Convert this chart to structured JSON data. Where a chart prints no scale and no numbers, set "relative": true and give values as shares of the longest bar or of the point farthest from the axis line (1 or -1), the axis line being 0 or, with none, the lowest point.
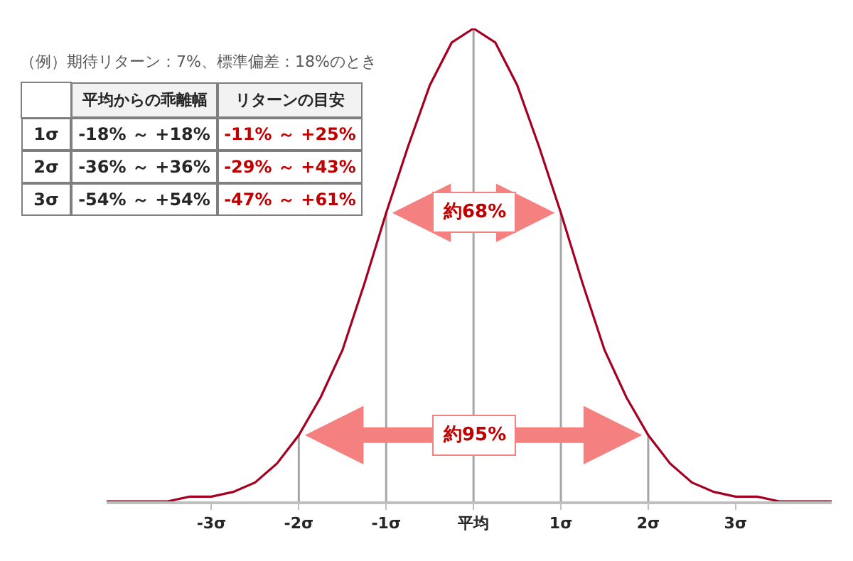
{
  "chart_data": {
    "type": "line",
    "relative": true,
    "tick_labels": "x",
    "x": [
      -4.2,
      -4,
      -3.75,
      -3.5,
      -3.25,
      -3,
      -2.75,
      -2.5,
      -2.25,
      -2,
      -1.75,
      -1.5,
      -1.25,
      -1,
      -0.75,
      -0.5,
      -0.25,
      0,
      0.25,
      0.5,
      0.75,
      1,
      1.25,
      1.5,
      1.75,
      2,
      2.25,
      2.5,
      2.75,
      3,
      3.25,
      3.5,
      3.75,
      4,
      4.1
    ],
    "series": [
      {
        "color": "#a50021",
        "values": [
          0,
          0,
          0,
          0,
          0.01,
          0.01,
          0.02,
          0.04,
          0.08,
          0.14,
          0.22,
          0.32,
          0.46,
          0.61,
          0.75,
          0.88,
          0.97,
          1,
          0.97,
          0.88,
          0.75,
          0.61,
          0.46,
          0.32,
          0.22,
          0.14,
          0.08,
          0.04,
          0.02,
          0.01,
          0.01,
          0,
          0,
          0,
          0
        ]
      }
    ],
    "xlim": [
      -4.2,
      4.1
    ],
    "xticks": [
      {
        "value": -3,
        "label": "-3σ"
      },
      {
        "value": -2,
        "label": "-2σ"
      },
      {
        "value": -1,
        "label": "-1σ"
      },
      {
        "value": 0,
        "label": "平均"
      },
      {
        "value": 1,
        "label": "1σ"
      },
      {
        "value": 2,
        "label": "2σ"
      },
      {
        "value": 3,
        "label": "3σ"
      }
    ],
    "ref_lines": [
      {
        "axis": "x",
        "value": -2,
        "color": "#a6a6a6"
      },
      {
        "axis": "x",
        "value": -1,
        "color": "#a6a6a6"
      },
      {
        "axis": "x",
        "value": 0,
        "color": "#a6a6a6"
      },
      {
        "axis": "x",
        "value": 1,
        "color": "#a6a6a6"
      },
      {
        "axis": "x",
        "value": 2,
        "color": "#a6a6a6"
      }
    ],
    "annotations": [
      {
        "text": "約68%",
        "x": 0,
        "y": 0.61
      },
      {
        "text": "約95%",
        "x": 0,
        "y": 0.14
      },
      "（例）期待リターン：7%、標準偏差：18%のとき",
      "平均からの乖離幅",
      "リターンの目安",
      "1σ",
      "-18% ～ +18%",
      "-11% ～ +25%",
      "2σ",
      "-36% ～ +36%",
      "-29% ～ +43%",
      "3σ",
      "-54% ～ +54%",
      "-47% ～ +61%"
    ]
  }
}
